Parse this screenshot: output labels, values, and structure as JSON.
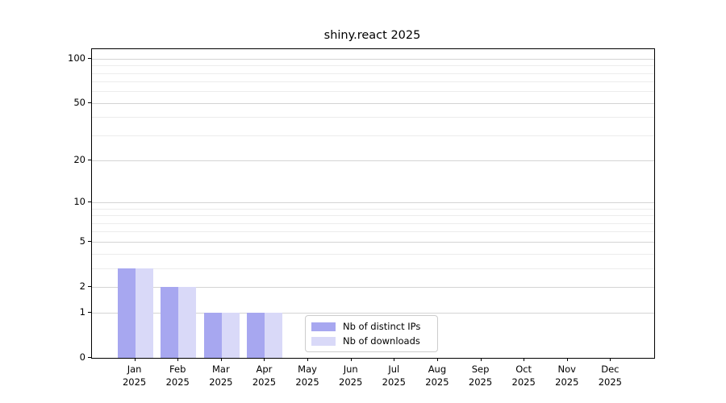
{
  "title": "shiny.react 2025",
  "colors": {
    "distinct_ips_bar": "#a7a7f0",
    "downloads_bar": "#d9d9f8",
    "grid_major": "#d4d4d4",
    "grid_minor": "#ececec",
    "axis": "#000000",
    "legend_border": "#cccccc"
  },
  "legend": {
    "items": [
      {
        "label": "Nb of distinct IPs",
        "color": "#a7a7f0"
      },
      {
        "label": "Nb of downloads",
        "color": "#d9d9f8"
      }
    ]
  },
  "chart_data": {
    "type": "bar",
    "title": "shiny.react 2025",
    "categories": [
      {
        "month": "Jan",
        "year": "2025"
      },
      {
        "month": "Feb",
        "year": "2025"
      },
      {
        "month": "Mar",
        "year": "2025"
      },
      {
        "month": "Apr",
        "year": "2025"
      },
      {
        "month": "May",
        "year": "2025"
      },
      {
        "month": "Jun",
        "year": "2025"
      },
      {
        "month": "Jul",
        "year": "2025"
      },
      {
        "month": "Aug",
        "year": "2025"
      },
      {
        "month": "Sep",
        "year": "2025"
      },
      {
        "month": "Oct",
        "year": "2025"
      },
      {
        "month": "Nov",
        "year": "2025"
      },
      {
        "month": "Dec",
        "year": "2025"
      }
    ],
    "series": [
      {
        "name": "Nb of distinct IPs",
        "color": "#a7a7f0",
        "values": [
          3,
          2,
          1,
          1,
          0,
          0,
          0,
          0,
          0,
          0,
          0,
          0
        ]
      },
      {
        "name": "Nb of downloads",
        "color": "#d9d9f8",
        "values": [
          3,
          2,
          1,
          1,
          0,
          0,
          0,
          0,
          0,
          0,
          0,
          0
        ]
      }
    ],
    "xlabel": "",
    "ylabel": "",
    "yscale": "log1p",
    "ylim": [
      0,
      116
    ],
    "yticks_major": [
      0,
      1,
      2,
      5,
      10,
      20,
      50,
      100
    ],
    "yticks_minor": [
      3,
      4,
      6,
      7,
      8,
      9,
      30,
      40,
      60,
      70,
      80,
      90
    ],
    "grid": "horizontal",
    "legend_position": "lower center-right inside plot"
  }
}
